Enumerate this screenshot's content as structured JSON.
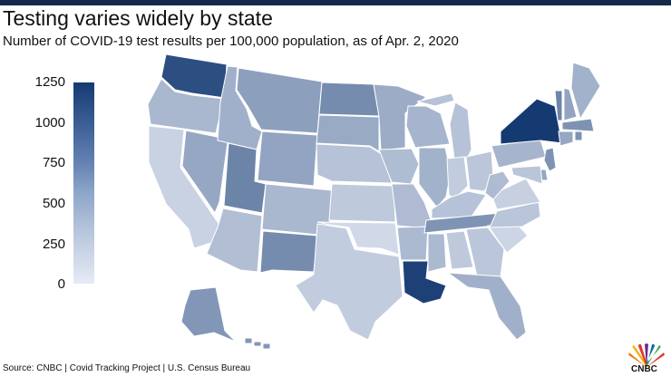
{
  "title": "Testing varies widely by state",
  "subtitle": "Number of COVID-19 test results per 100,000 population, as of Apr. 2, 2020",
  "source": "Source: CNBC | Covid Tracking Project | U.S. Census Bureau",
  "logo_text": "CNBC",
  "legend": {
    "ticks": [
      "1250",
      "1000",
      "750",
      "500",
      "250",
      "0"
    ],
    "min": 0,
    "max": 1300,
    "colors": {
      "low": "#e6ebf5",
      "high": "#153a72"
    }
  },
  "chart_data": {
    "type": "choropleth",
    "title": "Testing varies widely by state",
    "values_per_100k_estimated": {
      "WA": 1150,
      "OR": 380,
      "CA": 180,
      "NV": 500,
      "ID": 430,
      "MT": 560,
      "WY": 520,
      "UT": 760,
      "AZ": 330,
      "CO": 380,
      "NM": 700,
      "ND": 700,
      "SD": 480,
      "NE": 300,
      "KS": 250,
      "OK": 130,
      "TX": 230,
      "MN": 460,
      "IA": 340,
      "MO": 350,
      "AR": 360,
      "LA": 1250,
      "WI": 400,
      "IL": 420,
      "MI": 300,
      "IN": 230,
      "OH": 270,
      "KY": 300,
      "TN": 640,
      "MS": 360,
      "AL": 250,
      "GA": 270,
      "FL": 430,
      "SC": 160,
      "NC": 280,
      "VA": 200,
      "WV": 350,
      "PA": 400,
      "NY": 1300,
      "VT": 750,
      "NH": 520,
      "ME": 420,
      "MA": 650,
      "CT": 500,
      "RI": 650,
      "NJ": 650,
      "DE": 500,
      "MD": 280,
      "AK": 620,
      "HI": 620
    }
  }
}
